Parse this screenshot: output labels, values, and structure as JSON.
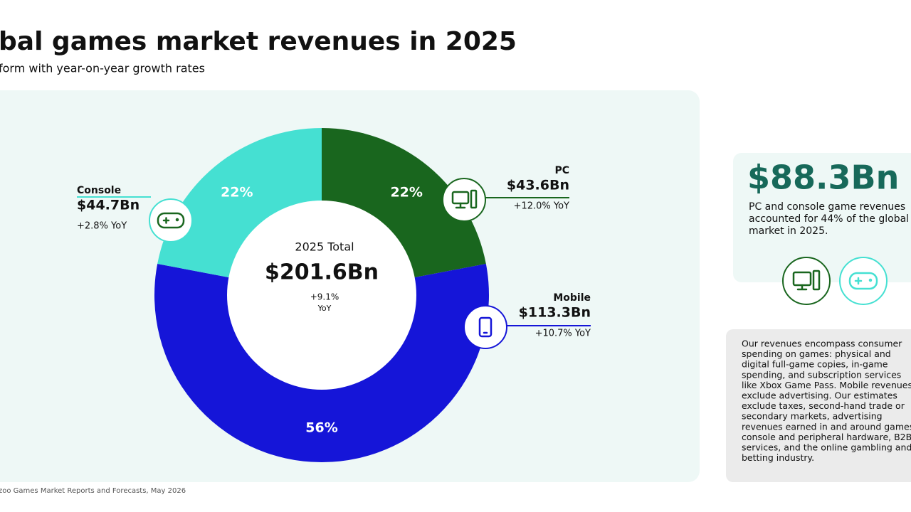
{
  "chart_data": {
    "type": "pie",
    "title": "bal games market revenues in 2025",
    "subtitle": "form with year-on-year growth rates",
    "categories": [
      "PC",
      "Mobile",
      "Console"
    ],
    "values": [
      22,
      56,
      22
    ],
    "value_labels": [
      "22%",
      "56%",
      "22%"
    ],
    "colors": [
      "#19661e",
      "#1515d8",
      "#45e0d2"
    ],
    "revenues": [
      "$43.6Bn",
      "$113.3Bn",
      "$44.7Bn"
    ],
    "growth": [
      "+12.0% YoY",
      "+10.7% YoY",
      "+2.8% YoY"
    ],
    "center": {
      "label": "2025 Total",
      "value": "$201.6Bn",
      "growth": "+9.1%",
      "unit": "YoY"
    },
    "source": "zoo Games Market Reports and Forecasts, May 2026"
  },
  "side_card": {
    "value": "$88.3Bn",
    "lines": [
      "PC and console game revenues",
      "accounted for 44% of the global",
      "market in 2025."
    ]
  },
  "note": {
    "lines": [
      "Our revenues encompass consumer",
      "spending on games: physical and",
      "digital full-game copies, in-game",
      "spending, and subscription services",
      "like Xbox Game Pass. Mobile revenues",
      "exclude advertising. Our estimates",
      "exclude taxes, second-hand trade or",
      "secondary markets, advertising",
      "revenues earned in and around games",
      "console and peripheral hardware, B2B",
      "services, and the online gambling and",
      "betting industry."
    ]
  }
}
